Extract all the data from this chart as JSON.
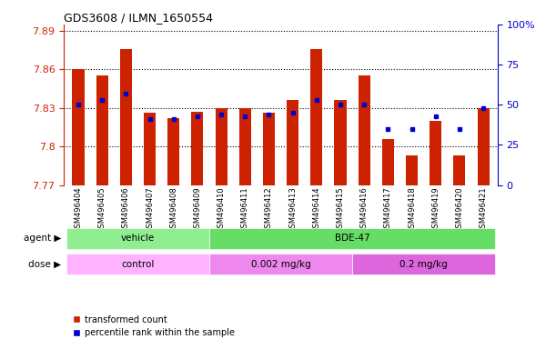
{
  "title": "GDS3608 / ILMN_1650554",
  "samples": [
    "GSM496404",
    "GSM496405",
    "GSM496406",
    "GSM496407",
    "GSM496408",
    "GSM496409",
    "GSM496410",
    "GSM496411",
    "GSM496412",
    "GSM496413",
    "GSM496414",
    "GSM496415",
    "GSM496416",
    "GSM496417",
    "GSM496418",
    "GSM496419",
    "GSM496420",
    "GSM496421"
  ],
  "red_values": [
    7.86,
    7.855,
    7.876,
    7.826,
    7.822,
    7.827,
    7.83,
    7.83,
    7.826,
    7.836,
    7.876,
    7.836,
    7.855,
    7.806,
    7.793,
    7.82,
    7.793,
    7.83
  ],
  "blue_values": [
    50,
    53,
    57,
    41,
    41,
    43,
    44,
    43,
    44,
    45,
    53,
    50,
    50,
    35,
    35,
    43,
    35,
    48
  ],
  "ymin": 7.77,
  "ymax": 7.895,
  "yticks": [
    7.77,
    7.8,
    7.83,
    7.86,
    7.89
  ],
  "right_yticks": [
    0,
    25,
    50,
    75,
    100
  ],
  "agent_groups": [
    {
      "label": "vehicle",
      "start": 0,
      "end": 6,
      "color": "#90ee90"
    },
    {
      "label": "BDE-47",
      "start": 6,
      "end": 18,
      "color": "#66dd66"
    }
  ],
  "dose_groups": [
    {
      "label": "control",
      "start": 0,
      "end": 6,
      "color": "#ffb3ff"
    },
    {
      "label": "0.002 mg/kg",
      "start": 6,
      "end": 12,
      "color": "#ee88ee"
    },
    {
      "label": "0.2 mg/kg",
      "start": 12,
      "end": 18,
      "color": "#dd66dd"
    }
  ],
  "bar_color": "#cc2200",
  "dot_color": "#0000cc",
  "bar_width": 0.5,
  "background_color": "#ffffff",
  "plot_bg": "#ffffff",
  "grid_color": "#000000",
  "left_axis_color": "#cc2200",
  "right_axis_color": "#0000cc",
  "legend_red": "transformed count",
  "legend_blue": "percentile rank within the sample"
}
